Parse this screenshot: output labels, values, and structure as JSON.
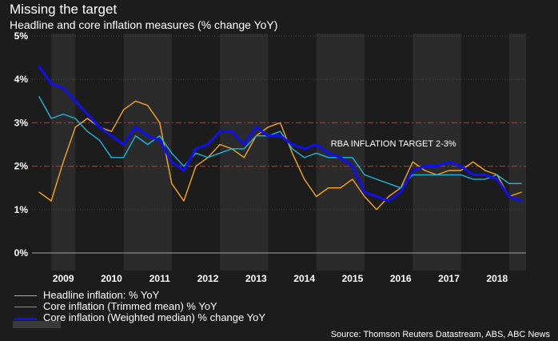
{
  "chart_data": {
    "type": "line",
    "title": "Missing the target",
    "subtitle": "Headline and core inflation measures (% change YoY)",
    "x": [
      2008.75,
      2009.0,
      2009.25,
      2009.5,
      2009.75,
      2010.0,
      2010.25,
      2010.5,
      2010.75,
      2011.0,
      2011.25,
      2011.5,
      2011.75,
      2012.0,
      2012.25,
      2012.5,
      2012.75,
      2013.0,
      2013.25,
      2013.5,
      2013.75,
      2014.0,
      2014.25,
      2014.5,
      2014.75,
      2015.0,
      2015.25,
      2015.5,
      2015.75,
      2016.0,
      2016.25,
      2016.5,
      2016.75,
      2017.0,
      2017.25,
      2017.5,
      2017.75,
      2018.0,
      2018.25,
      2018.5,
      2018.75
    ],
    "series": [
      {
        "name": "Headline inflation: % YoY",
        "color": "#f5a623",
        "width": 1.4,
        "values": [
          1.4,
          1.2,
          2.1,
          2.9,
          3.1,
          2.9,
          2.8,
          3.3,
          3.5,
          3.4,
          3.0,
          1.6,
          1.2,
          2.0,
          2.2,
          2.5,
          2.4,
          2.2,
          2.7,
          2.9,
          3.0,
          2.3,
          1.7,
          1.3,
          1.5,
          1.5,
          1.7,
          1.3,
          1.0,
          1.3,
          1.5,
          2.1,
          1.9,
          1.8,
          1.9,
          1.9,
          2.1,
          1.9,
          1.8,
          1.3,
          1.4
        ]
      },
      {
        "name": "Core inflation (Trimmed mean) % YoY",
        "color": "#1fb6dc",
        "width": 1.4,
        "values": [
          3.6,
          3.1,
          3.2,
          3.1,
          2.8,
          2.6,
          2.2,
          2.2,
          2.7,
          2.5,
          2.7,
          2.3,
          2.0,
          2.3,
          2.2,
          2.3,
          2.4,
          2.4,
          2.7,
          2.7,
          2.8,
          2.4,
          2.2,
          2.3,
          2.2,
          2.2,
          2.2,
          1.8,
          1.7,
          1.6,
          1.5,
          1.8,
          1.8,
          1.8,
          1.8,
          1.8,
          1.7,
          1.7,
          1.8,
          1.6,
          1.6
        ]
      },
      {
        "name": "Core inflation (Weighted median) % change YoY",
        "color": "#1010e8",
        "width": 3.2,
        "values": [
          4.3,
          3.9,
          3.8,
          3.5,
          3.2,
          2.9,
          2.7,
          2.5,
          2.9,
          2.7,
          2.6,
          2.1,
          1.9,
          2.4,
          2.5,
          2.8,
          2.8,
          2.5,
          2.9,
          2.7,
          2.7,
          2.5,
          2.4,
          2.5,
          2.3,
          2.2,
          2.0,
          1.4,
          1.3,
          1.2,
          1.4,
          1.9,
          2.0,
          2.0,
          2.1,
          2.0,
          1.8,
          1.8,
          1.7,
          1.3,
          1.2
        ]
      }
    ],
    "ylim": [
      0,
      5
    ],
    "xlim": [
      2008.6,
      2018.85
    ],
    "yticks": [
      0,
      1,
      2,
      3,
      4,
      5
    ],
    "yticklabels": [
      "0%",
      "1%",
      "2%",
      "3%",
      "4%",
      "5%"
    ],
    "xticklabels": [
      "2009",
      "2010",
      "2011",
      "2012",
      "2013",
      "2014",
      "2015",
      "2016",
      "2017",
      "2018"
    ],
    "xticklabel_values": [
      2009,
      2010,
      2011,
      2012,
      2013,
      2014,
      2015,
      2016,
      2017,
      2018
    ],
    "shaded_ranges": [
      [
        2009.0,
        2009.5
      ],
      [
        2010.5,
        2011.5
      ],
      [
        2012.5,
        2013.5
      ],
      [
        2014.5,
        2015.5
      ],
      [
        2016.5,
        2017.5
      ],
      [
        2018.5,
        2018.85
      ]
    ],
    "target_lines": [
      2,
      3
    ],
    "target_label": "RBA INFLATION TARGET 2-3%",
    "target_label_position": [
      2016.1,
      2.45
    ],
    "colors": {
      "background": "#1c1c1c",
      "shade": "#2b2b2b",
      "grid": "#4a4a4a",
      "target": "#d81e1e",
      "zero": "#a0a0a0"
    },
    "legend_placement": "bottom-left",
    "source": "Source: Thomson Reuters Datastream, ABS, ABC News"
  }
}
